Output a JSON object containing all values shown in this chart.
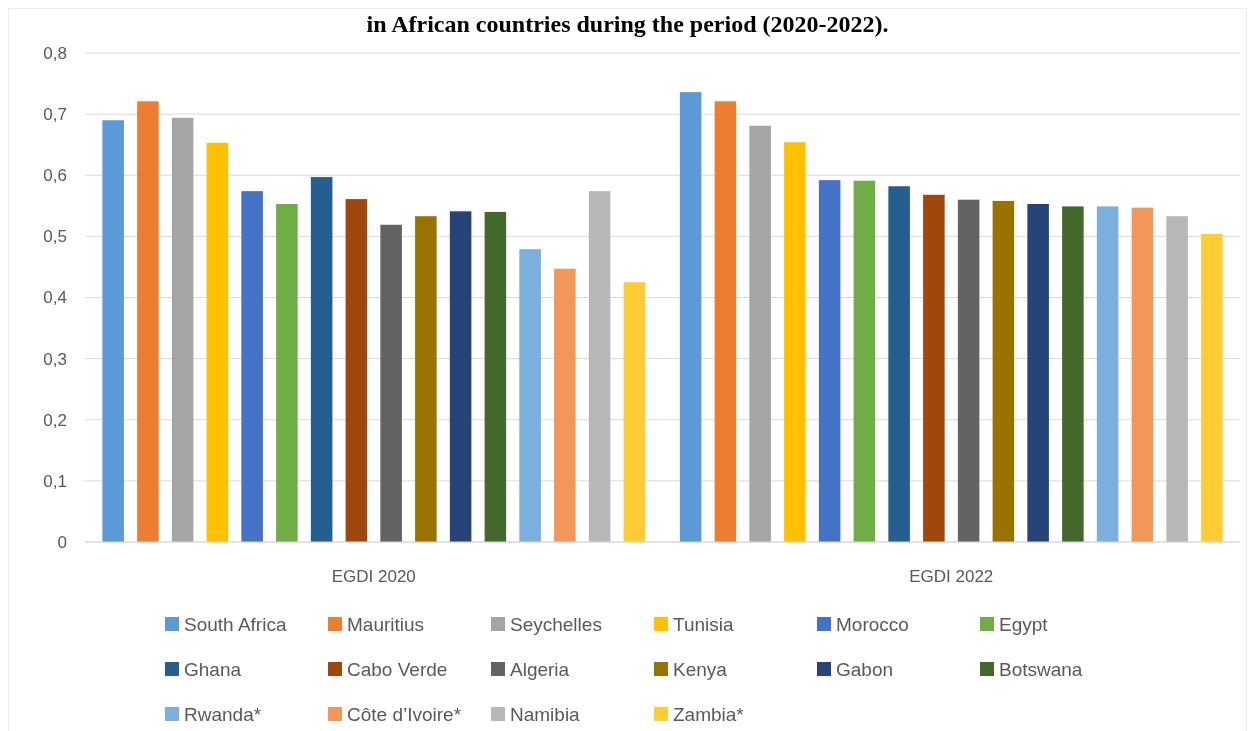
{
  "chart_data": {
    "type": "bar",
    "title": "in African countries during the period (2020-2022).",
    "categories": [
      "EGDI 2020",
      "EGDI 2022"
    ],
    "series": [
      {
        "name": "South Africa",
        "color": "#5b9bd5",
        "values": [
          0.69,
          0.736
        ]
      },
      {
        "name": "Mauritius",
        "color": "#ed7d31",
        "values": [
          0.721,
          0.721
        ]
      },
      {
        "name": "Seychelles",
        "color": "#a5a5a5",
        "values": [
          0.694,
          0.681
        ]
      },
      {
        "name": "Tunisia",
        "color": "#ffc000",
        "values": [
          0.653,
          0.654
        ]
      },
      {
        "name": "Morocco",
        "color": "#4472c4",
        "values": [
          0.574,
          0.592
        ]
      },
      {
        "name": "Egypt",
        "color": "#70ad47",
        "values": [
          0.553,
          0.591
        ]
      },
      {
        "name": "Ghana",
        "color": "#255e91",
        "values": [
          0.597,
          0.582
        ]
      },
      {
        "name": "Cabo Verde",
        "color": "#9e480e",
        "values": [
          0.561,
          0.568
        ]
      },
      {
        "name": "Algeria",
        "color": "#636363",
        "values": [
          0.519,
          0.56
        ]
      },
      {
        "name": "Kenya",
        "color": "#997300",
        "values": [
          0.533,
          0.558
        ]
      },
      {
        "name": "Gabon",
        "color": "#264478",
        "values": [
          0.541,
          0.553
        ]
      },
      {
        "name": "Botswana",
        "color": "#43682b",
        "values": [
          0.54,
          0.549
        ]
      },
      {
        "name": "Rwanda*",
        "color": "#7cafdd",
        "values": [
          0.479,
          0.549
        ]
      },
      {
        "name": "Côte d’Ivoire*",
        "color": "#f1975a",
        "values": [
          0.447,
          0.547
        ]
      },
      {
        "name": "Namibia",
        "color": "#b7b7b7",
        "values": [
          0.574,
          0.533
        ]
      },
      {
        "name": "Zambia*",
        "color": "#ffcd33",
        "values": [
          0.425,
          0.504
        ]
      }
    ],
    "ylim": [
      0,
      0.8
    ],
    "yticks": [
      {
        "value": 0,
        "label": "0"
      },
      {
        "value": 0.1,
        "label": "0,1"
      },
      {
        "value": 0.2,
        "label": "0,2"
      },
      {
        "value": 0.3,
        "label": "0,3"
      },
      {
        "value": 0.4,
        "label": "0,4"
      },
      {
        "value": 0.5,
        "label": "0,5"
      },
      {
        "value": 0.6,
        "label": "0,6"
      },
      {
        "value": 0.7,
        "label": "0,7"
      },
      {
        "value": 0.8,
        "label": "0,8"
      }
    ],
    "grid": "y",
    "legend": "bottom"
  }
}
